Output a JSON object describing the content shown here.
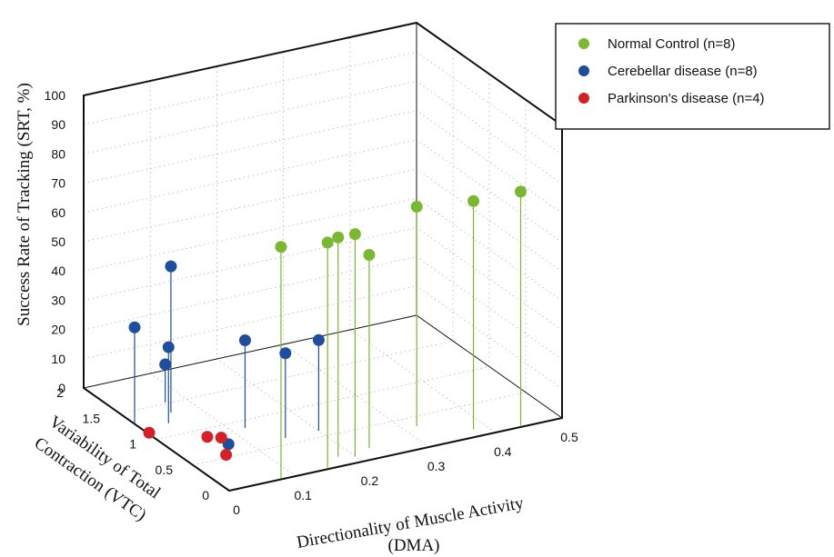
{
  "chart_data": {
    "type": "scatter",
    "subtype": "3d-stem",
    "xlabel": "Directionality of Muscle Activity",
    "xlabel_unit": "(DMA)",
    "ylabel_line1": "Variability of Total",
    "ylabel_line2": "Contraction (VTC)",
    "zlabel": "Success Rate of Tracking (SRT, %)",
    "xlim": [
      0,
      0.5
    ],
    "ylim": [
      0,
      2
    ],
    "zlim": [
      0,
      100
    ],
    "xticks": [
      "0",
      "0.1",
      "0.2",
      "0.3",
      "0.4",
      "0.5"
    ],
    "yticks": [
      "0",
      "0.5",
      "1",
      "1.5",
      "2"
    ],
    "zticks": [
      "0",
      "10",
      "20",
      "30",
      "40",
      "50",
      "60",
      "70",
      "80",
      "90",
      "100"
    ],
    "grid": true,
    "legend_position": "top-right",
    "series": [
      {
        "name": "Normal Control (n=8)",
        "color": "#7ab833",
        "points": [
          {
            "x": 0.08,
            "y": 0.02,
            "z": 79
          },
          {
            "x": 0.18,
            "y": 0.15,
            "z": 75
          },
          {
            "x": 0.2,
            "y": 0.1,
            "z": 76
          },
          {
            "x": 0.15,
            "y": 0.02,
            "z": 77
          },
          {
            "x": 0.23,
            "y": 0.18,
            "z": 66
          },
          {
            "x": 0.32,
            "y": 0.35,
            "z": 75
          },
          {
            "x": 0.38,
            "y": 0.12,
            "z": 78
          },
          {
            "x": 0.44,
            "y": 0.02,
            "z": 80
          }
        ]
      },
      {
        "name": "Cerebellar disease (n=8)",
        "color": "#1f4e9c",
        "points": [
          {
            "x": 0.0,
            "y": 1.3,
            "z": 33
          },
          {
            "x": 0.06,
            "y": 1.35,
            "z": 50
          },
          {
            "x": 0.04,
            "y": 1.2,
            "z": 26
          },
          {
            "x": 0.07,
            "y": 1.52,
            "z": 13
          },
          {
            "x": 0.15,
            "y": 0.6,
            "z": 29
          },
          {
            "x": 0.12,
            "y": 0.88,
            "z": 30
          },
          {
            "x": 0.2,
            "y": 0.6,
            "z": 31
          },
          {
            "x": 0.07,
            "y": 0.65,
            "z": 1
          }
        ]
      },
      {
        "name": "Parkinson's disease (n=4)",
        "color": "#d42027",
        "points": [
          {
            "x": 0.0,
            "y": 1.1,
            "z": 0.5
          },
          {
            "x": 0.06,
            "y": 0.85,
            "z": 0.5
          },
          {
            "x": 0.07,
            "y": 0.75,
            "z": 1.5
          },
          {
            "x": 0.05,
            "y": 0.5,
            "z": 1
          }
        ]
      }
    ]
  }
}
